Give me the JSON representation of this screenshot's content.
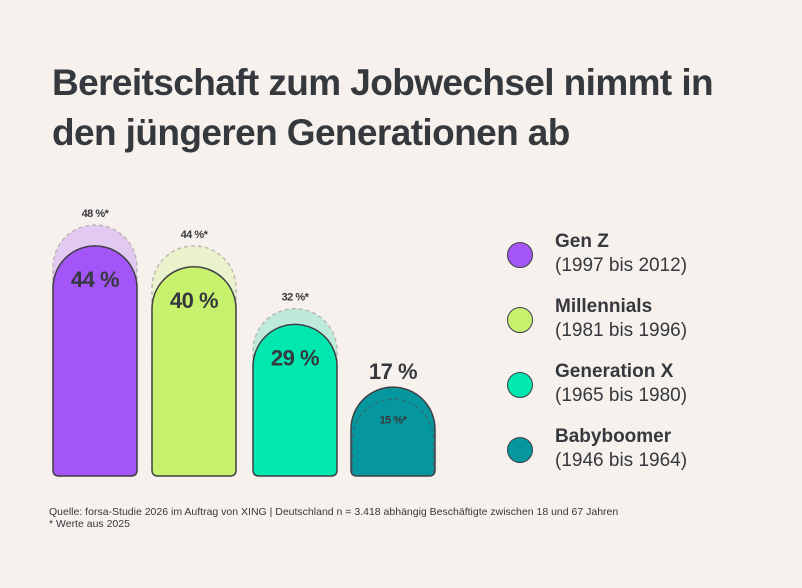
{
  "title": "Bereitschaft zum Jobwechsel nimmt in den jüngeren Generationen ab",
  "chart_data": {
    "type": "bar",
    "title": "Bereitschaft zum Jobwechsel nimmt in den jüngeren Generationen ab",
    "xlabel": "",
    "ylabel": "",
    "ylim": [
      0,
      50
    ],
    "grid": false,
    "legend_position": "right",
    "categories": [
      "Gen Z",
      "Millennials",
      "Generation X",
      "Babyboomer"
    ],
    "series": [
      {
        "name": "2026",
        "values": [
          44,
          40,
          29,
          17
        ],
        "labels": [
          "44 %",
          "40 %",
          "29 %",
          "17 %"
        ]
      },
      {
        "name": "2025 (Werte aus 2025)",
        "values": [
          48,
          44,
          32,
          15
        ],
        "labels": [
          "48 %*",
          "44 %*",
          "32 %*",
          "15 %*"
        ]
      }
    ],
    "colors": [
      "#a355f7",
      "#c8f26e",
      "#00e8b0",
      "#06979e"
    ],
    "prior_colors": [
      "#e2c9f2",
      "#eaf2cc",
      "#bdeadb",
      "#06979e"
    ]
  },
  "legend": [
    {
      "name": "Gen Z",
      "years": "(1997 bis 2012)",
      "color": "#a355f7"
    },
    {
      "name": "Millennials",
      "years": "(1981 bis 1996)",
      "color": "#c8f26e"
    },
    {
      "name": "Generation X",
      "years": "(1965 bis 1980)",
      "color": "#00e8b0"
    },
    {
      "name": "Babyboomer",
      "years": "(1946 bis 1964)",
      "color": "#06979e"
    }
  ],
  "footnote": {
    "source": "Quelle: forsa-Studie 2026 im Auftrag von XING | Deutschland n = 3.418 abhängig Beschäftigte zwischen 18 und 67 Jahren",
    "note": "* Werte aus 2025"
  }
}
